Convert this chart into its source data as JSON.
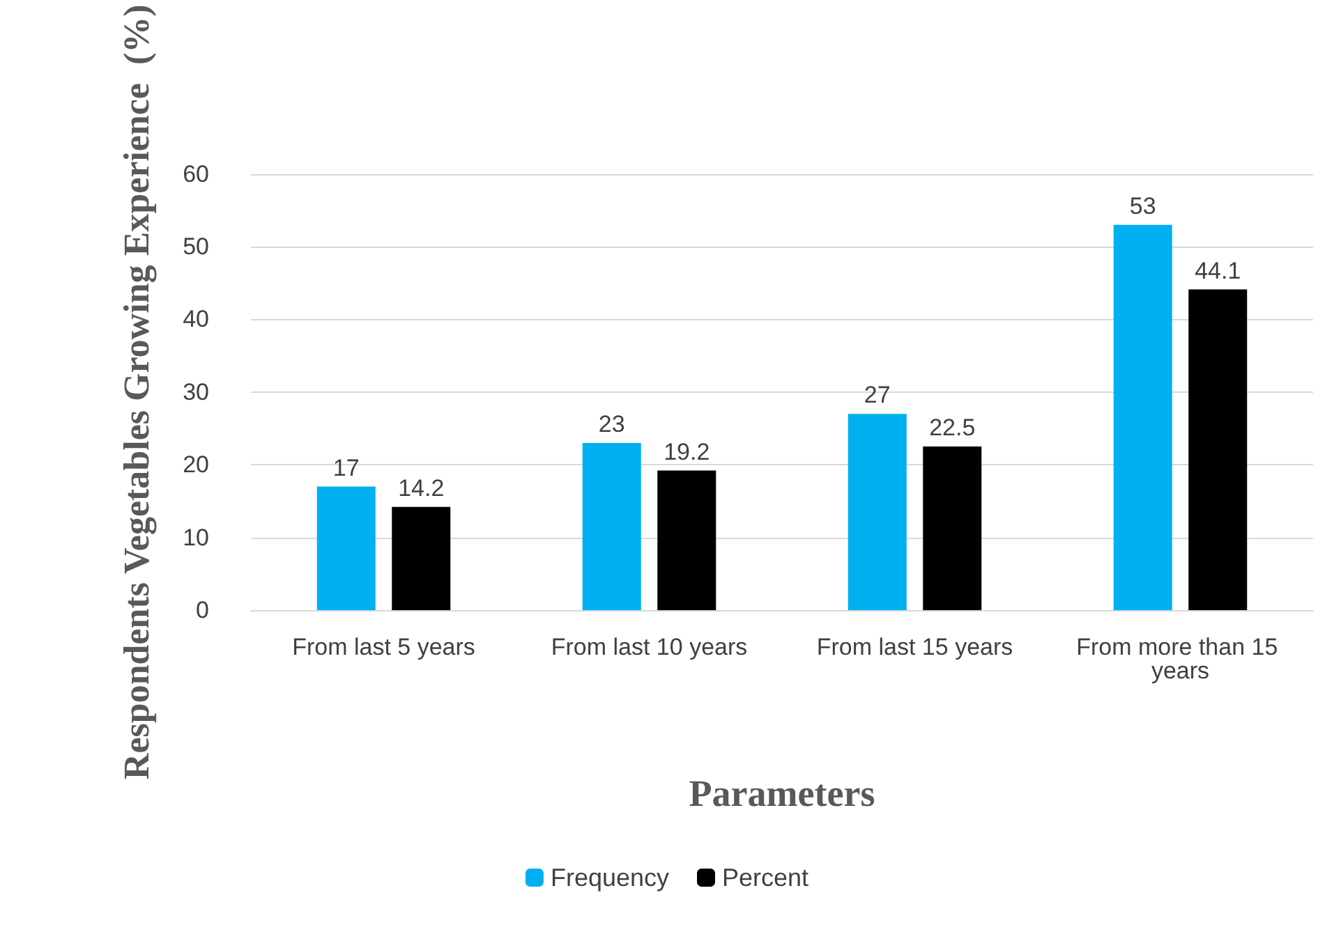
{
  "chart_data": {
    "type": "bar",
    "xlabel": "Parameters",
    "ylabel": "Respondents Vegetables Growing Experience  (%)",
    "categories": [
      "From last 5 years",
      "From last 10 years",
      "From last 15 years",
      "From more than 15 years"
    ],
    "series": [
      {
        "name": "Frequency",
        "color": "#00b0f0",
        "values": [
          17,
          23,
          27,
          53
        ]
      },
      {
        "name": "Percent",
        "color": "#000000",
        "values": [
          14.2,
          19.2,
          22.5,
          44.1
        ]
      }
    ],
    "ylim": [
      0,
      60
    ],
    "yticks": [
      0,
      10,
      20,
      30,
      40,
      50,
      60
    ],
    "grid": "y",
    "legend": "bottom",
    "data_labels": true
  }
}
